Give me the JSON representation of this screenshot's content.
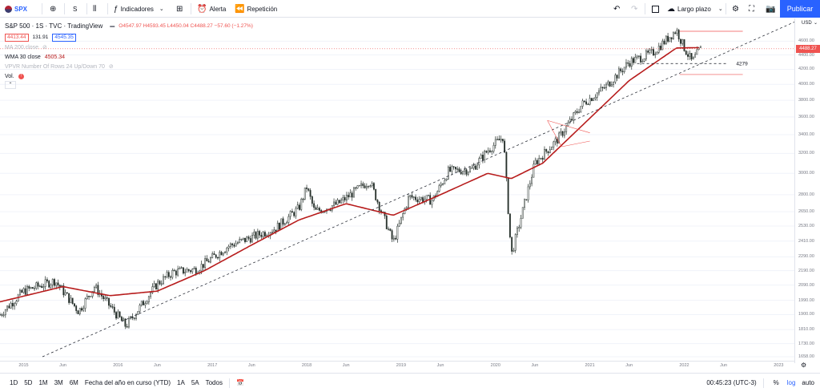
{
  "toolbar": {
    "symbol": "SPX",
    "interval": "S",
    "indicators": "Indicadores",
    "alert": "Alerta",
    "replay": "Repetición",
    "layout_name": "Largo plazo",
    "publish": "Publicar"
  },
  "legend": {
    "title": "S&P 500 · 1S · TVC · TradingView",
    "ohlc": "O4547.97 H4593.45 L4450.04 C4488.27 −57.60 (−1.27%)",
    "bid": "4413.44",
    "spread": "131.91",
    "ask": "4545.35",
    "ma": "MA 200 close",
    "wma_label": "WMA 30 close",
    "wma_value": "4505.34",
    "vpvr": "VPVR Number Of Rows 24 Up/Down 70",
    "vol": "Vol."
  },
  "price_axis": {
    "currency": "USD",
    "last_price": "4488.27",
    "ticks": [
      "4600.00",
      "4400.00",
      "4200.00",
      "4000.00",
      "3800.00",
      "3600.00",
      "3400.00",
      "3200.00",
      "3000.00",
      "2800.00",
      "2650.00",
      "2530.00",
      "2410.00",
      "2290.00",
      "2190.00",
      "2090.00",
      "1990.00",
      "1900.00",
      "1810.00",
      "1730.00",
      "1658.00"
    ]
  },
  "time_axis": {
    "labels": [
      "2015",
      "Jun",
      "2016",
      "Jun",
      "2017",
      "Jun",
      "2018",
      "Jun",
      "2019",
      "Jun",
      "2020",
      "Jun",
      "2021",
      "Jun",
      "2022",
      "Jun",
      "2023"
    ]
  },
  "annotation_label": "4279",
  "bottom": {
    "ranges": [
      "1D",
      "5D",
      "1M",
      "3M",
      "6M",
      "Fecha del año en curso (YTD)",
      "1A",
      "5A",
      "Todos"
    ],
    "clock": "00:45:23 (UTC-3)",
    "percent": "%",
    "log": "log",
    "auto": "auto"
  },
  "chart_data": {
    "type": "candlestick",
    "title": "S&P 500 · 1S · TVC · TradingView",
    "y_scale": "log",
    "ylim": [
      1658,
      4750
    ],
    "x_range": [
      "2014-10",
      "2023-03"
    ],
    "price_series": {
      "name": "SPX",
      "x": [
        "2014-10",
        "2015-01",
        "2015-05",
        "2015-08",
        "2015-10",
        "2016-02",
        "2016-06",
        "2016-08",
        "2016-11",
        "2017-03",
        "2017-06",
        "2017-09",
        "2017-12",
        "2018-01",
        "2018-02",
        "2018-05",
        "2018-09",
        "2018-12",
        "2019-02",
        "2019-05",
        "2019-07",
        "2019-10",
        "2019-12",
        "2020-02",
        "2020-03",
        "2020-06",
        "2020-09",
        "2020-12",
        "2021-03",
        "2021-06",
        "2021-09",
        "2021-12",
        "2022-01",
        "2022-02",
        "2022-03"
      ],
      "close": [
        1900,
        2050,
        2120,
        1920,
        2080,
        1830,
        2100,
        2180,
        2200,
        2370,
        2440,
        2510,
        2680,
        2870,
        2650,
        2720,
        2930,
        2400,
        2780,
        2750,
        3020,
        3040,
        3230,
        3380,
        2300,
        3100,
        3360,
        3750,
        3970,
        4300,
        4430,
        4770,
        4500,
        4300,
        4488
      ]
    },
    "series": [
      {
        "name": "WMA 30 close",
        "color": "#b71c1c",
        "x": [
          "2014-10",
          "2015-06",
          "2015-12",
          "2016-06",
          "2016-12",
          "2017-06",
          "2017-12",
          "2018-06",
          "2018-12",
          "2019-06",
          "2019-12",
          "2020-03",
          "2020-07",
          "2020-12",
          "2021-06",
          "2021-12",
          "2022-03"
        ],
        "values": [
          1980,
          2080,
          2020,
          2050,
          2190,
          2380,
          2580,
          2720,
          2620,
          2800,
          3000,
          2950,
          3100,
          3500,
          4050,
          4500,
          4505
        ]
      }
    ],
    "annotations": [
      {
        "type": "horizontal",
        "value": 4279,
        "label": "4279"
      },
      {
        "type": "horizontal",
        "value": 4750
      },
      {
        "type": "horizontal",
        "value": 4130
      },
      {
        "type": "last_price",
        "value": 4488.27
      }
    ]
  },
  "colors": {
    "up": "#26a69a",
    "down": "#ef5350",
    "candle": "#26302b",
    "wma": "#b71c1c",
    "accent": "#2962ff",
    "last_price": "#ef5350"
  }
}
